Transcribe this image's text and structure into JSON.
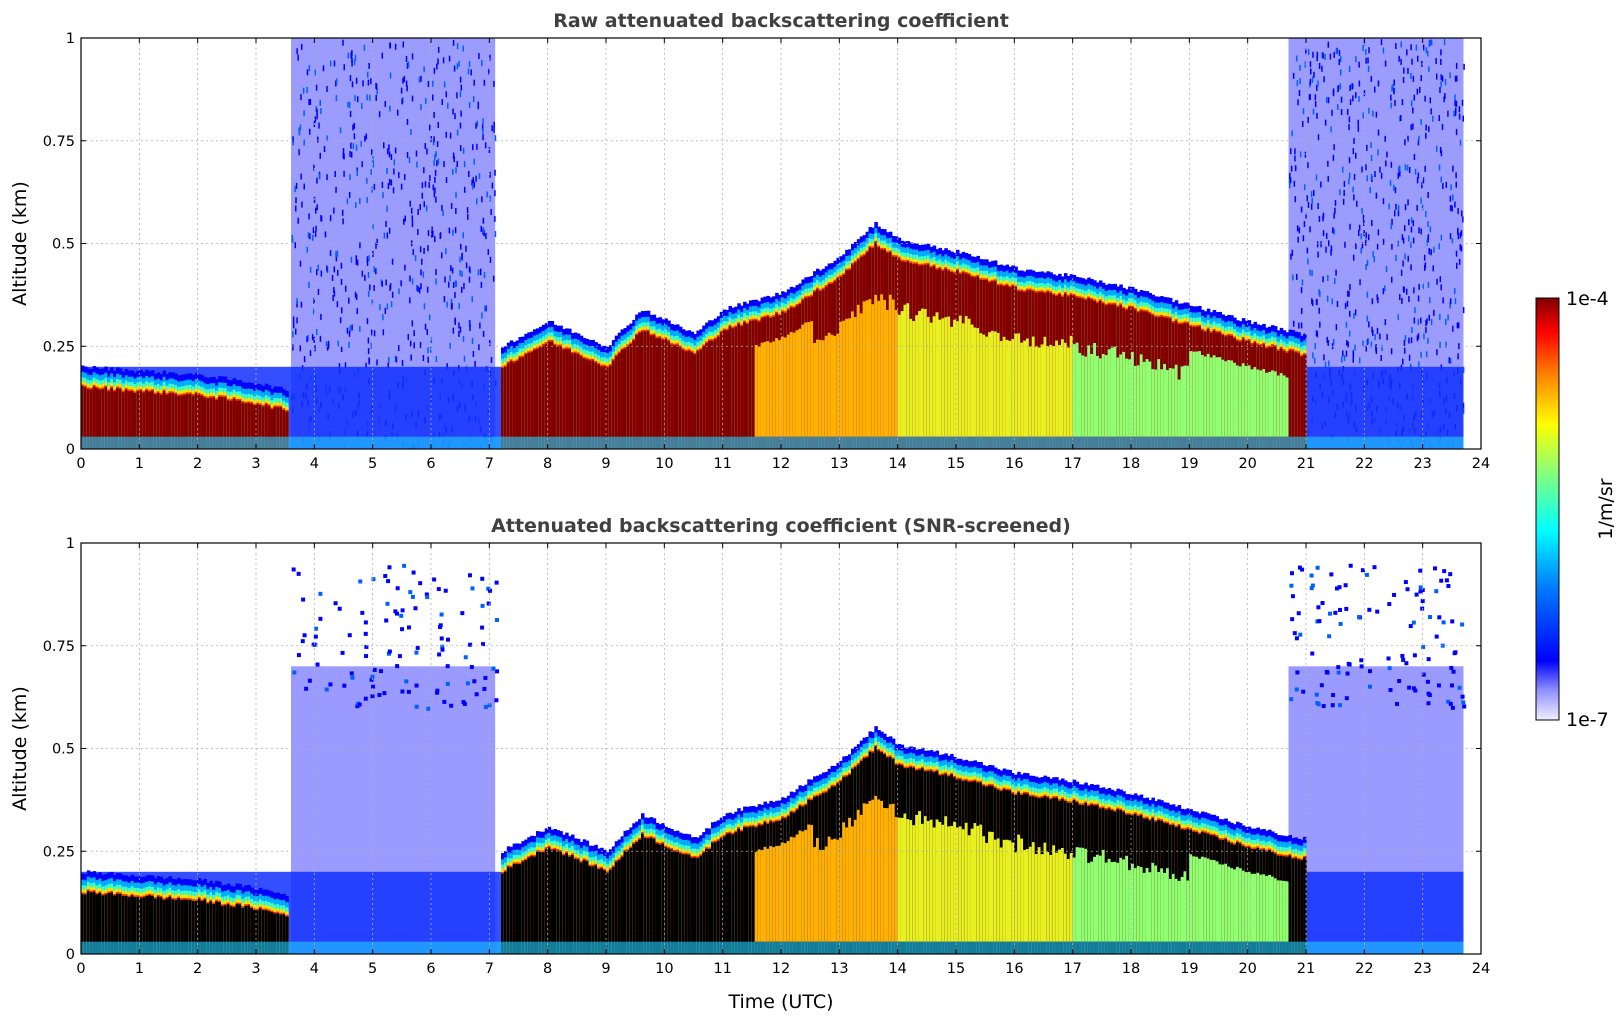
{
  "chart_data": [
    {
      "type": "heatmap",
      "title": "Raw attenuated backscattering coefficient",
      "xlabel": "",
      "ylabel": "Altitude (km)",
      "xlim": [
        0,
        24
      ],
      "ylim": [
        0,
        1
      ],
      "xticks": [
        "0",
        "1",
        "2",
        "3",
        "4",
        "5",
        "6",
        "7",
        "8",
        "9",
        "10",
        "11",
        "12",
        "13",
        "14",
        "15",
        "16",
        "17",
        "18",
        "19",
        "20",
        "21",
        "22",
        "23",
        "24"
      ],
      "yticks": [
        "0",
        "0.25",
        "0.5",
        "0.75",
        "1"
      ],
      "grid": true,
      "layer_top_km": [
        {
          "t": 0,
          "h": 0.15
        },
        {
          "t": 1,
          "h": 0.14
        },
        {
          "t": 2,
          "h": 0.13
        },
        {
          "t": 3,
          "h": 0.11
        },
        {
          "t": 3.6,
          "h": 0.09
        },
        {
          "t": 7.2,
          "h": 0.2
        },
        {
          "t": 8,
          "h": 0.26
        },
        {
          "t": 9,
          "h": 0.2
        },
        {
          "t": 9.6,
          "h": 0.29
        },
        {
          "t": 10.5,
          "h": 0.23
        },
        {
          "t": 11,
          "h": 0.29
        },
        {
          "t": 12,
          "h": 0.33
        },
        {
          "t": 13,
          "h": 0.42
        },
        {
          "t": 13.6,
          "h": 0.5
        },
        {
          "t": 14,
          "h": 0.46
        },
        {
          "t": 15,
          "h": 0.43
        },
        {
          "t": 16,
          "h": 0.39
        },
        {
          "t": 17,
          "h": 0.37
        },
        {
          "t": 18,
          "h": 0.34
        },
        {
          "t": 19,
          "h": 0.3
        },
        {
          "t": 20,
          "h": 0.26
        },
        {
          "t": 20.9,
          "h": 0.23
        }
      ]
    },
    {
      "type": "heatmap",
      "title": "Attenuated backscattering coefficient (SNR-screened)",
      "xlabel": "Time (UTC)",
      "ylabel": "Altitude (km)",
      "xlim": [
        0,
        24
      ],
      "ylim": [
        0,
        1
      ],
      "xticks": [
        "0",
        "1",
        "2",
        "3",
        "4",
        "5",
        "6",
        "7",
        "8",
        "9",
        "10",
        "11",
        "12",
        "13",
        "14",
        "15",
        "16",
        "17",
        "18",
        "19",
        "20",
        "21",
        "22",
        "23",
        "24"
      ],
      "yticks": [
        "0",
        "0.25",
        "0.5",
        "0.75",
        "1"
      ],
      "grid": true
    }
  ],
  "colorbar": {
    "label": "1/m/sr",
    "max_label": "1e-4",
    "min_label": "1e-7",
    "colormap": "jet",
    "scale": "log"
  }
}
